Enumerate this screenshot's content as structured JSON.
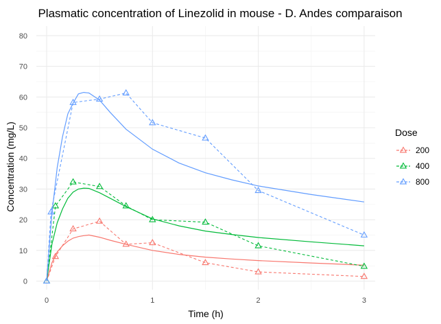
{
  "chart_data": {
    "type": "line",
    "title": "Plasmatic concentration of Linezolid in mouse - D. Andes comparaison",
    "xlabel": "Time (h)",
    "ylabel": "Concentration (mg/L)",
    "xlim": [
      0,
      3
    ],
    "ylim": [
      0,
      80
    ],
    "xticks": [
      0,
      1,
      2,
      3
    ],
    "yticks": [
      0,
      10,
      20,
      30,
      40,
      50,
      60,
      70,
      80
    ],
    "grid": true,
    "legend": {
      "title": "Dose",
      "position": "right"
    },
    "series": [
      {
        "name": "200",
        "color": "#F8766D",
        "observed": {
          "x": [
            0,
            0.0833,
            0.25,
            0.5,
            0.75,
            1,
            1.5,
            2,
            3
          ],
          "y": [
            0,
            8,
            17,
            19.5,
            12,
            12.5,
            6,
            3,
            1.5
          ]
        },
        "model": {
          "x": [
            0,
            0.05,
            0.1,
            0.15,
            0.2,
            0.25,
            0.3,
            0.35,
            0.4,
            0.5,
            0.6,
            0.75,
            1,
            1.25,
            1.5,
            1.75,
            2,
            2.5,
            3
          ],
          "y": [
            0,
            6,
            9.5,
            11.5,
            13,
            14,
            14.5,
            14.8,
            15,
            14.3,
            13.3,
            12,
            10,
            8.7,
            7.8,
            7.2,
            6.7,
            5.9,
            5.2
          ]
        }
      },
      {
        "name": "400",
        "color": "#00BA38",
        "observed": {
          "x": [
            0,
            0.0833,
            0.25,
            0.5,
            0.75,
            1,
            1.5,
            2,
            3
          ],
          "y": [
            0,
            24.5,
            32.3,
            30.8,
            24.5,
            20,
            19.2,
            11.5,
            4.8
          ]
        },
        "model": {
          "x": [
            0,
            0.05,
            0.1,
            0.15,
            0.2,
            0.25,
            0.3,
            0.35,
            0.4,
            0.5,
            0.6,
            0.75,
            1,
            1.25,
            1.5,
            1.75,
            2,
            2.5,
            3
          ],
          "y": [
            0,
            12,
            19,
            23.5,
            27,
            29,
            30,
            30.3,
            30.2,
            28.8,
            27,
            24.3,
            20.3,
            18,
            16.3,
            15.2,
            14.2,
            12.8,
            11.5
          ]
        }
      },
      {
        "name": "800",
        "color": "#619CFF",
        "observed": {
          "x": [
            0,
            0.0417,
            0.25,
            0.5,
            0.75,
            1,
            1.5,
            2,
            3
          ],
          "y": [
            0,
            22.5,
            58.2,
            59.3,
            61.3,
            51.6,
            46.6,
            29.5,
            15
          ]
        },
        "model": {
          "x": [
            0,
            0.05,
            0.1,
            0.15,
            0.2,
            0.25,
            0.3,
            0.35,
            0.4,
            0.5,
            0.6,
            0.75,
            1,
            1.25,
            1.5,
            1.75,
            2,
            2.5,
            3
          ],
          "y": [
            0,
            22,
            37,
            47,
            54.5,
            58,
            61,
            61.5,
            61.3,
            59,
            55,
            49.5,
            43,
            38.5,
            35.3,
            33,
            31,
            28.2,
            25.8
          ]
        }
      }
    ]
  }
}
